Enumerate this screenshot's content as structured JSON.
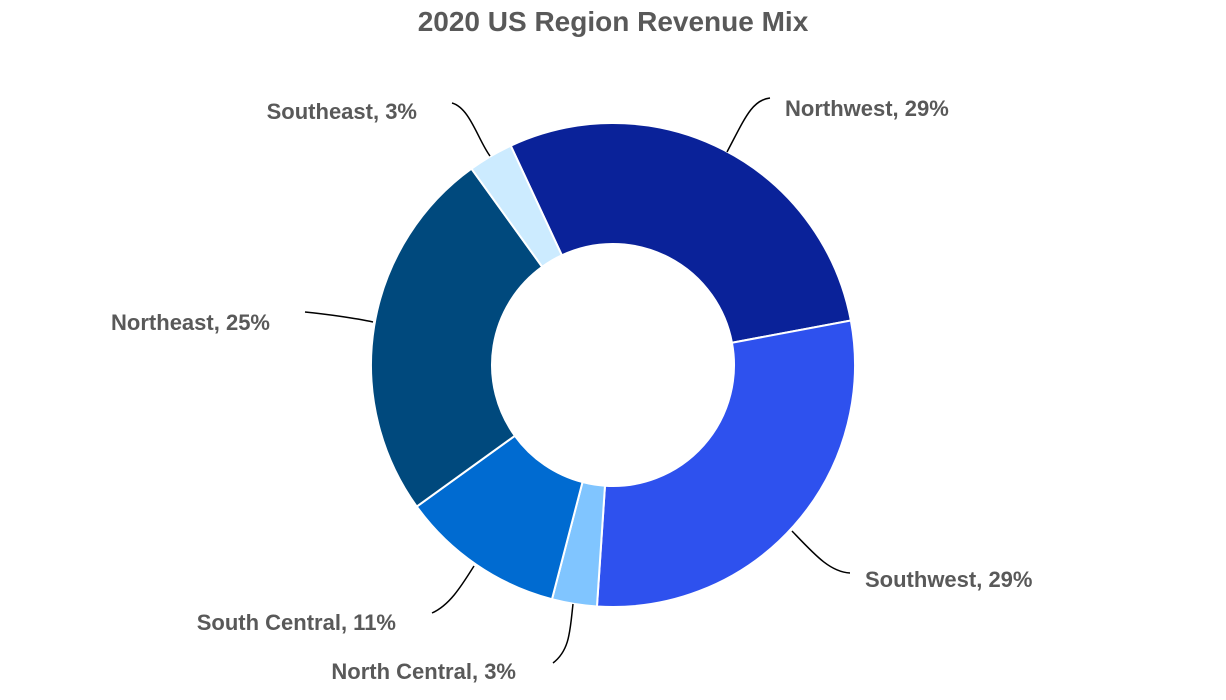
{
  "chart_data": {
    "type": "pie",
    "variant": "donut",
    "title": "2020 US Region Revenue Mix",
    "legend": "none",
    "slices": [
      {
        "label": "Northwest",
        "value": 29,
        "display": "Northwest, 29%",
        "color": "#0A2299"
      },
      {
        "label": "Southwest",
        "value": 29,
        "display": "Southwest, 29%",
        "color": "#2E51EE"
      },
      {
        "label": "North Central",
        "value": 3,
        "display": "North Central, 3%",
        "color": "#80C5FF"
      },
      {
        "label": "South Central",
        "value": 11,
        "display": "South Central, 11%",
        "color": "#006BD1"
      },
      {
        "label": "Northeast",
        "value": 25,
        "display": "Northeast, 25%",
        "color": "#00497D"
      },
      {
        "label": "Southeast",
        "value": 3,
        "display": "Southeast, 3%",
        "color": "#CCEBFF"
      }
    ]
  }
}
